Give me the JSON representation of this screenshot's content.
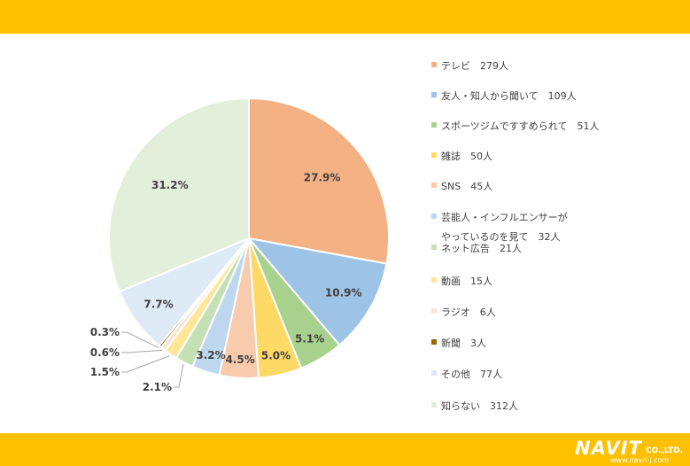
{
  "chart_data": {
    "type": "pie",
    "title": "",
    "legend_position": "right",
    "slices": [
      {
        "label": "テレビ",
        "count": "279人",
        "value": 27.9,
        "pct_label": "27.9%",
        "color": "#F4B183"
      },
      {
        "label": "友人・知人から聞いて",
        "count": "109人",
        "value": 10.9,
        "pct_label": "10.9%",
        "color": "#9DC3E6"
      },
      {
        "label": "スポーツジムですすめられて",
        "count": "51人",
        "value": 5.1,
        "pct_label": "5.1%",
        "color": "#A9D18E"
      },
      {
        "label": "雑誌",
        "count": "50人",
        "value": 5.0,
        "pct_label": "5.0%",
        "color": "#FFD966"
      },
      {
        "label": "SNS",
        "count": "45人",
        "value": 4.5,
        "pct_label": "4.5%",
        "color": "#F8CBAD"
      },
      {
        "label": "芸能人・インフルエンサーが",
        "label2": "やっているのを見て",
        "count": "32人",
        "value": 3.2,
        "pct_label": "3.2%",
        "color": "#BDD7EE"
      },
      {
        "label": "ネット広告",
        "count": "21人",
        "value": 2.1,
        "pct_label": "2.1%",
        "color": "#C5E0B4"
      },
      {
        "label": "動画",
        "count": "15人",
        "value": 1.5,
        "pct_label": "1.5%",
        "color": "#FFE699"
      },
      {
        "label": "ラジオ",
        "count": "6人",
        "value": 0.6,
        "pct_label": "0.6%",
        "color": "#FBE5D6"
      },
      {
        "label": "新聞",
        "count": "3人",
        "value": 0.3,
        "pct_label": "0.3%",
        "color": "#9C6500"
      },
      {
        "label": "その他",
        "count": "77人",
        "value": 7.7,
        "pct_label": "7.7%",
        "color": "#DEEBF7"
      },
      {
        "label": "知らない",
        "count": "312人",
        "value": 31.2,
        "pct_label": "31.2%",
        "color": "#E2EFDA"
      }
    ]
  },
  "logo": {
    "brand": "NAVIT",
    "suffix": "CO.,LTD.",
    "url": "www.navit-j.com"
  }
}
